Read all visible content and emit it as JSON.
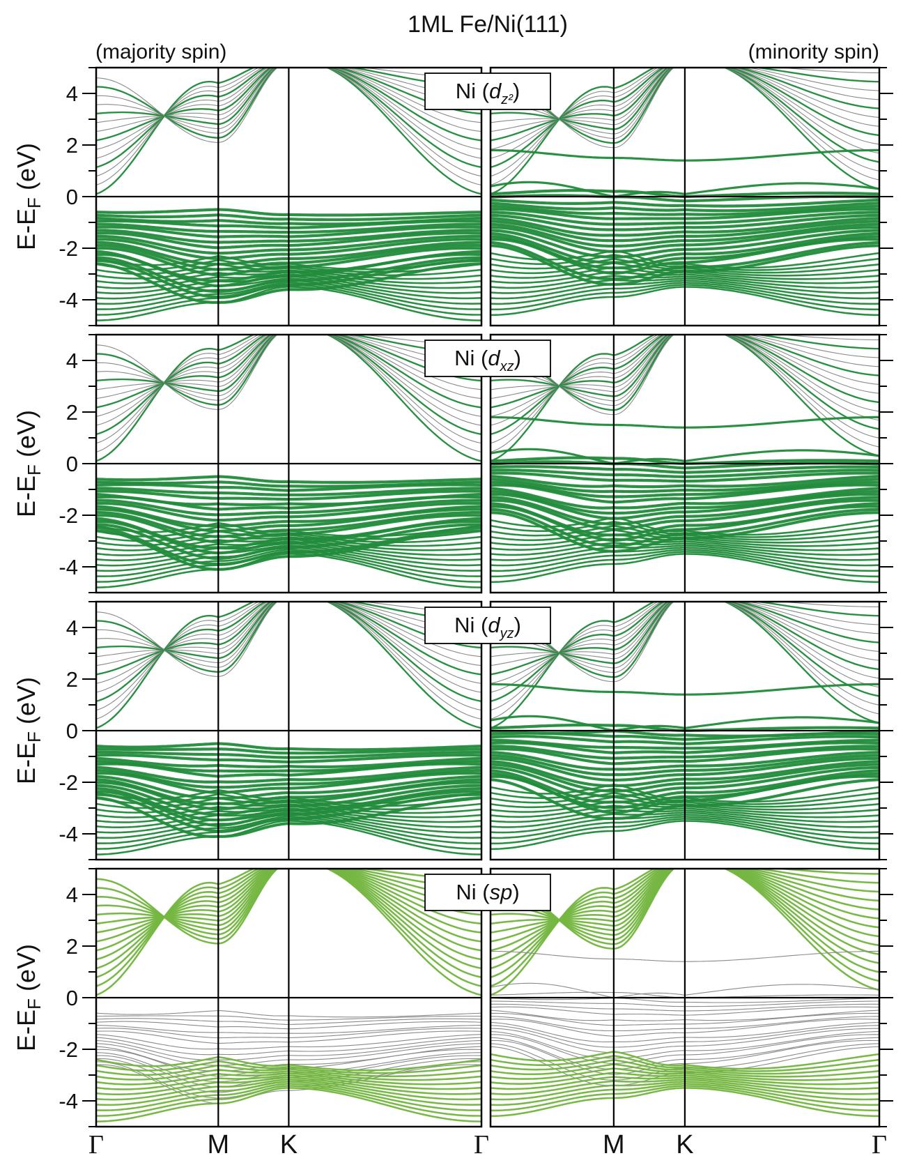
{
  "figure": {
    "title": "1ML Fe/Ni(111)",
    "left_header": "(majority spin)",
    "right_header": "(minority spin)",
    "ylabel_main": "E-E",
    "ylabel_sub": "F",
    "ylabel_unit": " (eV)",
    "panel_labels": [
      {
        "prefix": "Ni (",
        "orbital": "d",
        "sub": "z²",
        "suffix": ")"
      },
      {
        "prefix": "Ni (",
        "orbital": "d",
        "sub": "xz",
        "suffix": ")"
      },
      {
        "prefix": "Ni (",
        "orbital": "d",
        "sub": "yz",
        "suffix": ")"
      },
      {
        "prefix": "Ni (",
        "orbital": "sp",
        "sub": "",
        "suffix": ")"
      }
    ]
  },
  "chart_data": {
    "type": "line",
    "chart_kind": "electronic band structure with orbital projection",
    "xlabel": "",
    "ylabel": "E-EF (eV)",
    "ylim": [
      -5,
      5
    ],
    "yticks": [
      -4,
      -2,
      0,
      2,
      4
    ],
    "kpath": [
      "Γ",
      "M",
      "K",
      "Γ"
    ],
    "kpath_positions": [
      0,
      1,
      1.577,
      3.155
    ],
    "base_band_color": "#8a8a8a",
    "projection_colors": {
      "d": "#1e8c3a",
      "sp": "#74b83f"
    },
    "panels": [
      {
        "orbital": "d_z2",
        "spin": "majority",
        "color": "#1e8c3a"
      },
      {
        "orbital": "d_z2",
        "spin": "minority",
        "color": "#1e8c3a"
      },
      {
        "orbital": "d_xz",
        "spin": "majority",
        "color": "#1e8c3a"
      },
      {
        "orbital": "d_xz",
        "spin": "minority",
        "color": "#1e8c3a"
      },
      {
        "orbital": "d_yz",
        "spin": "majority",
        "color": "#1e8c3a"
      },
      {
        "orbital": "d_yz",
        "spin": "minority",
        "color": "#1e8c3a"
      },
      {
        "orbital": "sp",
        "spin": "majority",
        "color": "#74b83f"
      },
      {
        "orbital": "sp",
        "spin": "minority",
        "color": "#74b83f"
      }
    ],
    "series": [
      {
        "group": "sp_up_parabola",
        "gamma": 0.1,
        "m": 4.4,
        "k": 5.0,
        "gamma_end": 0.1
      },
      {
        "group": "d_band_top",
        "gamma": -0.7,
        "m": -0.5,
        "k": -0.7,
        "gamma_end": -0.7
      },
      {
        "group": "d_band_mid",
        "gamma": -2.3,
        "m": -1.5,
        "k": -2.6,
        "gamma_end": -2.3
      },
      {
        "group": "d_band_bottom",
        "gamma": -4.8,
        "m": -4.0,
        "k": -3.5,
        "gamma_end": -4.8
      }
    ]
  }
}
